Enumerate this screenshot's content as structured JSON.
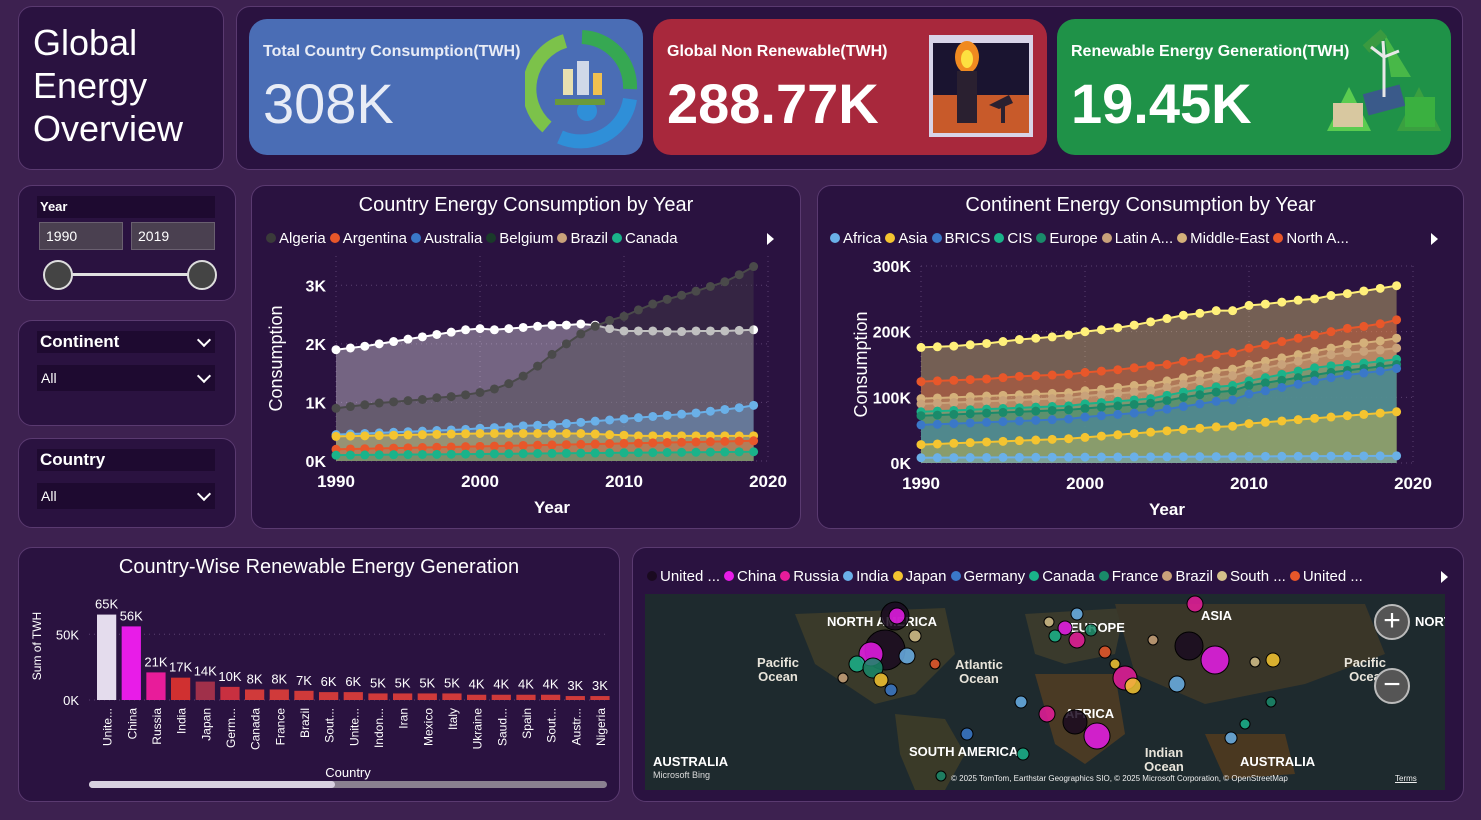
{
  "header": {
    "title_lines": [
      "Global",
      "Energy",
      "Overview"
    ]
  },
  "kpis": [
    {
      "label": "Total Country Consumption(TWH)",
      "value": "308K",
      "icon": "recycle-city-icon"
    },
    {
      "label": "Global Non Renewable(TWH)",
      "value": "288.77K",
      "icon": "oil-refinery-icon"
    },
    {
      "label": "Renewable Energy Generation(TWH)",
      "value": "19.45K",
      "icon": "recycle-green-icon"
    }
  ],
  "slicers": {
    "year": {
      "label": "Year",
      "from": "1990",
      "to": "2019"
    },
    "continent": {
      "label": "Continent",
      "selected": "All"
    },
    "country": {
      "label": "Country",
      "selected": "All"
    }
  },
  "colors": {
    "background": "#3d2150",
    "panel": "#2a1240",
    "kpi_blue": "#4a6db5",
    "kpi_red": "#a8283c",
    "kpi_green": "#1f9248"
  },
  "chart_data": [
    {
      "type": "area",
      "title": "Country Energy Consumption by Year",
      "xlabel": "Year",
      "ylabel": "Consumption",
      "x_ticks": [
        "1990",
        "2000",
        "2010",
        "2020"
      ],
      "y_ticks": [
        "0K",
        "1K",
        "2K",
        "3K"
      ],
      "ylim": [
        0,
        3500
      ],
      "legend": [
        {
          "name": "Algeria",
          "color": "#3a3a3a"
        },
        {
          "name": "Argentina",
          "color": "#e8572a"
        },
        {
          "name": "Australia",
          "color": "#3a78c8"
        },
        {
          "name": "Belgium",
          "color": "#1a3a2a"
        },
        {
          "name": "Brazil",
          "color": "#c9a27a"
        },
        {
          "name": "Canada",
          "color": "#1ab38a"
        }
      ],
      "series": [
        {
          "color": "#ffffff",
          "values": [
            1900,
            1930,
            1960,
            2000,
            2040,
            2080,
            2120,
            2160,
            2200,
            2240,
            2260,
            2240,
            2260,
            2280,
            2300,
            2320,
            2320,
            2340,
            2320,
            2260,
            2220,
            2220,
            2220,
            2210,
            2210,
            2220,
            2220,
            2220,
            2230,
            2240
          ]
        },
        {
          "color": "#4a4a4a",
          "values": [
            900,
            930,
            960,
            990,
            1010,
            1030,
            1050,
            1080,
            1100,
            1130,
            1170,
            1230,
            1320,
            1450,
            1620,
            1820,
            2000,
            2170,
            2300,
            2400,
            2470,
            2580,
            2680,
            2760,
            2830,
            2900,
            2980,
            3060,
            3180,
            3320
          ]
        },
        {
          "color": "#6ab0e8",
          "values": [
            450,
            460,
            470,
            480,
            490,
            500,
            510,
            520,
            530,
            540,
            560,
            570,
            580,
            600,
            610,
            620,
            640,
            660,
            680,
            700,
            720,
            740,
            760,
            780,
            800,
            820,
            850,
            880,
            910,
            950
          ]
        },
        {
          "color": "#f4c430",
          "values": [
            420,
            425,
            430,
            435,
            440,
            445,
            450,
            455,
            460,
            465,
            470,
            470,
            470,
            470,
            470,
            470,
            470,
            470,
            460,
            450,
            440,
            430,
            430,
            430,
            430,
            430,
            430,
            430,
            430,
            430
          ]
        },
        {
          "color": "#e8572a",
          "values": [
            200,
            205,
            210,
            215,
            220,
            225,
            230,
            235,
            240,
            245,
            250,
            255,
            260,
            265,
            270,
            275,
            280,
            285,
            290,
            295,
            300,
            305,
            310,
            315,
            320,
            325,
            330,
            335,
            340,
            345
          ]
        },
        {
          "color": "#1ab38a",
          "values": [
            100,
            102,
            104,
            106,
            108,
            110,
            112,
            114,
            116,
            118,
            120,
            122,
            124,
            126,
            128,
            130,
            132,
            134,
            136,
            138,
            140,
            142,
            144,
            146,
            148,
            150,
            152,
            154,
            156,
            158
          ]
        }
      ]
    },
    {
      "type": "area",
      "title": "Continent Energy Consumption by Year",
      "xlabel": "Year",
      "ylabel": "Consumption",
      "x_ticks": [
        "1990",
        "2000",
        "2010",
        "2020"
      ],
      "y_ticks": [
        "0K",
        "100K",
        "200K",
        "300K"
      ],
      "ylim": [
        0,
        300000
      ],
      "legend": [
        {
          "name": "Africa",
          "color": "#6ab0e8"
        },
        {
          "name": "Asia",
          "color": "#f4c430"
        },
        {
          "name": "BRICS",
          "color": "#3a78c8"
        },
        {
          "name": "CIS",
          "color": "#1ab38a"
        },
        {
          "name": "Europe",
          "color": "#1a8a6a"
        },
        {
          "name": "Latin A...",
          "color": "#c9a27a"
        },
        {
          "name": "Middle-East",
          "color": "#d4b07a"
        },
        {
          "name": "North A...",
          "color": "#e8572a"
        }
      ],
      "series": [
        {
          "color": "#fff07a",
          "values": [
            176000,
            177000,
            178000,
            180000,
            182000,
            185000,
            188000,
            190000,
            192000,
            195000,
            200000,
            203000,
            206000,
            210000,
            215000,
            220000,
            225000,
            228000,
            232000,
            232000,
            240000,
            242000,
            245000,
            248000,
            250000,
            255000,
            258000,
            262000,
            266000,
            270000
          ]
        },
        {
          "color": "#e8572a",
          "values": [
            124000,
            125000,
            126000,
            127000,
            128000,
            130000,
            132000,
            133000,
            134000,
            135000,
            138000,
            140000,
            142000,
            145000,
            148000,
            150000,
            155000,
            160000,
            165000,
            168000,
            175000,
            180000,
            185000,
            190000,
            195000,
            200000,
            205000,
            208000,
            212000,
            218000
          ]
        },
        {
          "color": "#d4b07a",
          "values": [
            98000,
            99000,
            100000,
            101000,
            102000,
            103000,
            104000,
            105000,
            106000,
            107000,
            110000,
            112000,
            115000,
            118000,
            120000,
            125000,
            130000,
            135000,
            140000,
            143000,
            150000,
            155000,
            160000,
            165000,
            170000,
            175000,
            180000,
            183000,
            186000,
            190000
          ]
        },
        {
          "color": "#c9a27a",
          "values": [
            90000,
            91000,
            92000,
            93000,
            94000,
            95000,
            96000,
            97000,
            98000,
            99000,
            102000,
            104000,
            106000,
            108000,
            110000,
            115000,
            120000,
            125000,
            130000,
            133000,
            140000,
            145000,
            150000,
            155000,
            160000,
            165000,
            168000,
            170000,
            172000,
            175000
          ]
        },
        {
          "color": "#1ab38a",
          "values": [
            78000,
            79000,
            80000,
            81000,
            82000,
            83000,
            84000,
            85000,
            86000,
            87000,
            90000,
            92000,
            94000,
            96000,
            98000,
            103000,
            108000,
            112000,
            116000,
            118000,
            125000,
            130000,
            135000,
            140000,
            145000,
            148000,
            150000,
            152000,
            155000,
            158000
          ]
        },
        {
          "color": "#1a8a6a",
          "values": [
            72000,
            73000,
            74000,
            75000,
            76000,
            77000,
            78000,
            79000,
            80000,
            81000,
            83000,
            85000,
            87000,
            89000,
            91000,
            95000,
            100000,
            104000,
            108000,
            110000,
            118000,
            122000,
            126000,
            130000,
            134000,
            138000,
            141000,
            144000,
            147000,
            150000
          ]
        },
        {
          "color": "#3a78c8",
          "values": [
            58000,
            59000,
            60000,
            61000,
            62000,
            63000,
            64000,
            65000,
            66000,
            67000,
            70000,
            72000,
            74000,
            76000,
            78000,
            82000,
            86000,
            90000,
            94000,
            96000,
            105000,
            110000,
            115000,
            120000,
            125000,
            130000,
            134000,
            137000,
            140000,
            144000
          ]
        },
        {
          "color": "#f4c430",
          "values": [
            28000,
            29000,
            30000,
            31000,
            32000,
            33000,
            34000,
            35000,
            36000,
            37000,
            39000,
            41000,
            43000,
            45000,
            47000,
            49000,
            51000,
            53000,
            55000,
            56000,
            60000,
            62000,
            64000,
            66000,
            68000,
            70000,
            72000,
            74000,
            76000,
            78000
          ]
        },
        {
          "color": "#6ab0e8",
          "values": [
            8000,
            8100,
            8200,
            8300,
            8400,
            8500,
            8600,
            8700,
            8800,
            8900,
            9000,
            9100,
            9200,
            9300,
            9400,
            9500,
            9600,
            9700,
            9800,
            9900,
            10000,
            10100,
            10200,
            10300,
            10400,
            10500,
            10600,
            10700,
            10800,
            10900
          ]
        }
      ]
    },
    {
      "type": "bar",
      "title": "Country-Wise Renewable Energy Generation",
      "xlabel": "Country",
      "ylabel": "Sum of TWH",
      "y_ticks": [
        "0K",
        "50K"
      ],
      "ylim": [
        0,
        70000
      ],
      "categories": [
        "Unite...",
        "China",
        "Russia",
        "India",
        "Japan",
        "Germ...",
        "Canada",
        "France",
        "Brazil",
        "Sout...",
        "Unite...",
        "Indon...",
        "Iran",
        "Mexico",
        "Italy",
        "Ukraine",
        "Saud...",
        "Spain",
        "Sout...",
        "Austr...",
        "Nigeria"
      ],
      "values": [
        65000,
        56000,
        21000,
        17000,
        14000,
        10000,
        8000,
        8000,
        7000,
        6000,
        6000,
        5000,
        5000,
        5000,
        5000,
        4000,
        4000,
        4000,
        4000,
        3000,
        3000
      ],
      "labels": [
        "65K",
        "56K",
        "21K",
        "17K",
        "14K",
        "10K",
        "8K",
        "8K",
        "7K",
        "6K",
        "6K",
        "5K",
        "5K",
        "5K",
        "5K",
        "4K",
        "4K",
        "4K",
        "4K",
        "3K",
        "3K"
      ],
      "colors": [
        "#e4dced",
        "#e81ce8",
        "#e81c9a",
        "#d03030",
        "#a0304a",
        "#c83040",
        "#d03a3a",
        "#d03a3a",
        "#d03a3a",
        "#d03a3a",
        "#d03a3a",
        "#d03a3a",
        "#d03a3a",
        "#d03a3a",
        "#d03a3a",
        "#d03a3a",
        "#d03a3a",
        "#d03a3a",
        "#d03a3a",
        "#d03a3a",
        "#d03a3a"
      ]
    }
  ],
  "map": {
    "legend": [
      {
        "name": "United ...",
        "color": "#1a0a20"
      },
      {
        "name": "China",
        "color": "#e81ce8"
      },
      {
        "name": "Russia",
        "color": "#e81c9a"
      },
      {
        "name": "India",
        "color": "#6ab0e8"
      },
      {
        "name": "Japan",
        "color": "#f4c430"
      },
      {
        "name": "Germany",
        "color": "#3a78c8"
      },
      {
        "name": "Canada",
        "color": "#1ab38a"
      },
      {
        "name": "France",
        "color": "#1a8a6a"
      },
      {
        "name": "Brazil",
        "color": "#c9a27a"
      },
      {
        "name": "South ...",
        "color": "#d4c08a"
      },
      {
        "name": "United ...",
        "color": "#e8572a"
      }
    ],
    "labels": {
      "north_america": "NORTH AMERICA",
      "europe": "EUROPE",
      "asia": "ASIA",
      "africa": "AFRICA",
      "south_america": "SOUTH AMERICA",
      "australia_left": "AUSTRALIA",
      "australia_right": "AUSTRALIA",
      "north_right": "NORT",
      "pacific_left": "Pacific Ocean",
      "atlantic": "Atlantic Ocean",
      "pacific_right": "Pacific Ocea",
      "indian": "Indian Ocean",
      "bing": "Microsoft Bing",
      "attribution": "© 2025 TomTom, Earthstar Geographics SIO, © 2025 Microsoft Corporation, © OpenStreetMap",
      "terms": "Terms",
      "zoom_in": "+",
      "zoom_out": "−"
    }
  }
}
